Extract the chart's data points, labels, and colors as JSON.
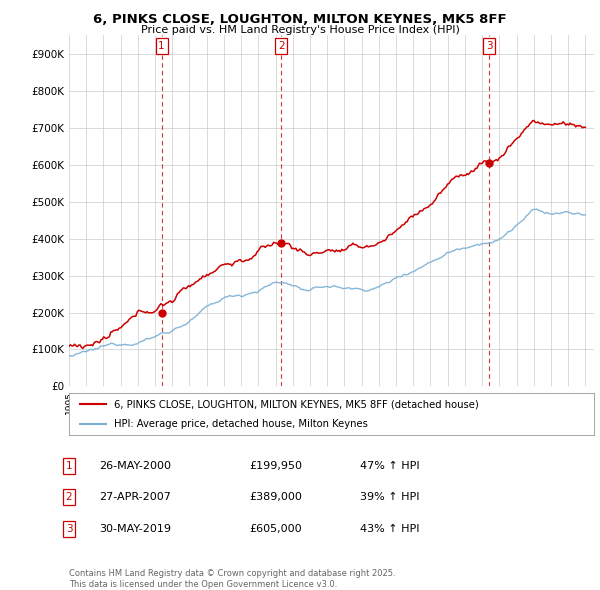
{
  "title": "6, PINKS CLOSE, LOUGHTON, MILTON KEYNES, MK5 8FF",
  "subtitle": "Price paid vs. HM Land Registry's House Price Index (HPI)",
  "ylim": [
    0,
    950000
  ],
  "yticks": [
    0,
    100000,
    200000,
    300000,
    400000,
    500000,
    600000,
    700000,
    800000,
    900000
  ],
  "ytick_labels": [
    "£0",
    "£100K",
    "£200K",
    "£300K",
    "£400K",
    "£500K",
    "£600K",
    "£700K",
    "£800K",
    "£900K"
  ],
  "legend_line1": "6, PINKS CLOSE, LOUGHTON, MILTON KEYNES, MK5 8FF (detached house)",
  "legend_line2": "HPI: Average price, detached house, Milton Keynes",
  "sale1_date": 2000.38,
  "sale1_price": 199950,
  "sale2_date": 2007.32,
  "sale2_price": 389000,
  "sale3_date": 2019.41,
  "sale3_price": 605000,
  "table_rows": [
    [
      "1",
      "26-MAY-2000",
      "£199,950",
      "47% ↑ HPI"
    ],
    [
      "2",
      "27-APR-2007",
      "£389,000",
      "39% ↑ HPI"
    ],
    [
      "3",
      "30-MAY-2019",
      "£605,000",
      "43% ↑ HPI"
    ]
  ],
  "footer": "Contains HM Land Registry data © Crown copyright and database right 2025.\nThis data is licensed under the Open Government Licence v3.0.",
  "red_color": "#cc0000",
  "blue_color": "#7aafd4",
  "bg_color": "#ffffff",
  "grid_color": "#cccccc",
  "hpi_years": [
    1995,
    1996,
    1997,
    1998,
    1999,
    2000,
    2001,
    2002,
    2003,
    2004,
    2005,
    2006,
    2007,
    2008,
    2009,
    2010,
    2011,
    2012,
    2013,
    2014,
    2015,
    2016,
    2017,
    2018,
    2019,
    2020,
    2021,
    2022,
    2023,
    2024,
    2025
  ],
  "hpi_values": [
    75000,
    80000,
    90000,
    100000,
    115000,
    130000,
    150000,
    175000,
    205000,
    230000,
    240000,
    258000,
    278000,
    272000,
    252000,
    265000,
    260000,
    256000,
    265000,
    288000,
    315000,
    340000,
    370000,
    388000,
    408000,
    415000,
    455000,
    490000,
    480000,
    482000,
    472000
  ]
}
